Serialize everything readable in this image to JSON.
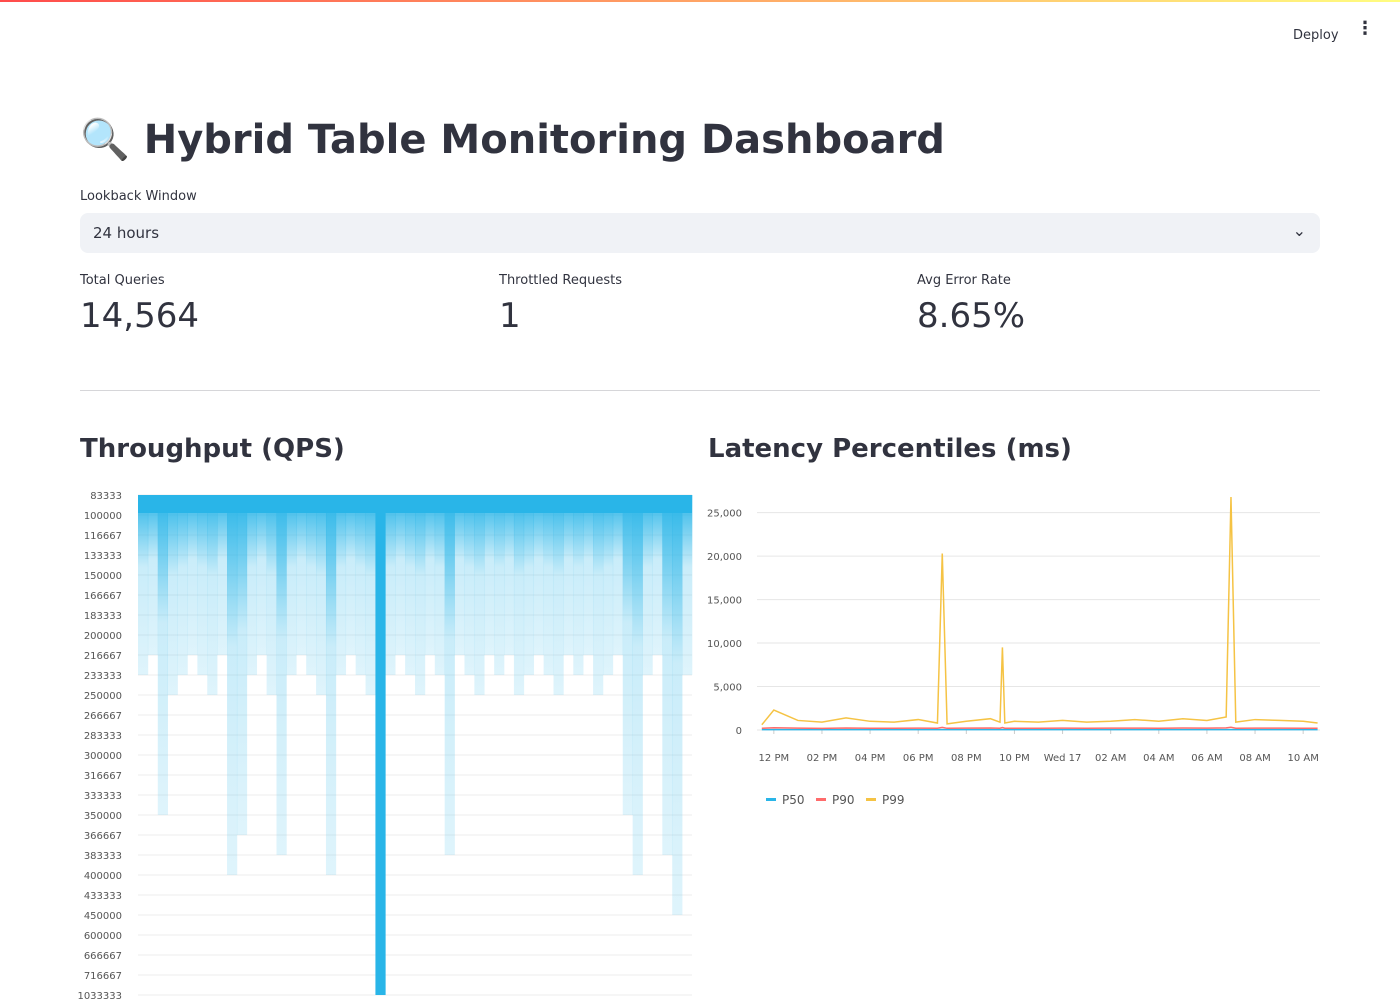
{
  "header": {
    "deploy": "Deploy"
  },
  "title": "🔍 Hybrid Table Monitoring Dashboard",
  "select": {
    "label": "Lookback Window",
    "value": "24 hours"
  },
  "metrics": [
    {
      "label": "Total Queries",
      "value": "14,564"
    },
    {
      "label": "Throttled Requests",
      "value": "1"
    },
    {
      "label": "Avg Error Rate",
      "value": "8.65%"
    }
  ],
  "charts": [
    {
      "type": "bar",
      "title": "Throughput (QPS)",
      "color": "#29b5e8",
      "yticks": [
        83333,
        100000,
        116667,
        133333,
        150000,
        166667,
        183333,
        200000,
        216667,
        233333,
        250000,
        266667,
        283333,
        300000,
        316667,
        333333,
        350000,
        366667,
        383333,
        400000,
        433333,
        450000,
        600000,
        666667,
        716667,
        1033333
      ],
      "values": [
        233333,
        216667,
        350000,
        250000,
        233333,
        216667,
        233333,
        250000,
        216667,
        400000,
        366667,
        233333,
        216667,
        250000,
        383333,
        233333,
        216667,
        233333,
        250000,
        400000,
        233333,
        216667,
        233333,
        250000,
        1033333,
        233333,
        216667,
        233333,
        250000,
        216667,
        233333,
        383333,
        216667,
        233333,
        250000,
        216667,
        233333,
        216667,
        250000,
        233333,
        216667,
        233333,
        250000,
        216667,
        233333,
        216667,
        250000,
        233333,
        216667,
        350000,
        400000,
        233333,
        216667,
        383333,
        450000,
        233333
      ]
    },
    {
      "type": "line",
      "title": "Latency Percentiles (ms)",
      "x": [
        11.5,
        12,
        13,
        14,
        15,
        16,
        17,
        18,
        18.8,
        19,
        19.2,
        20,
        21,
        21.4,
        21.5,
        21.6,
        22,
        23,
        24,
        25,
        26,
        27,
        28,
        29,
        30,
        30.8,
        31,
        31.2,
        32,
        33,
        34,
        34.6
      ],
      "xlim": [
        11.3,
        34.7
      ],
      "xticks": [
        {
          "value": 12,
          "label": "12 PM"
        },
        {
          "value": 14,
          "label": "02 PM"
        },
        {
          "value": 16,
          "label": "04 PM"
        },
        {
          "value": 18,
          "label": "06 PM"
        },
        {
          "value": 20,
          "label": "08 PM"
        },
        {
          "value": 22,
          "label": "10 PM"
        },
        {
          "value": 24,
          "label": "Wed 17"
        },
        {
          "value": 26,
          "label": "02 AM"
        },
        {
          "value": 28,
          "label": "04 AM"
        },
        {
          "value": 30,
          "label": "06 AM"
        },
        {
          "value": 32,
          "label": "08 AM"
        },
        {
          "value": 34,
          "label": "10 AM"
        }
      ],
      "ylim": [
        0,
        26800
      ],
      "yticks": [
        0,
        {
          "value": 5000,
          "label": "5,000"
        },
        {
          "value": 10000,
          "label": "10,000"
        },
        {
          "value": 15000,
          "label": "15,000"
        },
        {
          "value": 20000,
          "label": "20,000"
        },
        {
          "value": 25000,
          "label": "25,000"
        }
      ],
      "series": [
        {
          "name": "P50",
          "color": "#29b5e8",
          "values": [
            40,
            42,
            41,
            40,
            43,
            41,
            40,
            42,
            41,
            45,
            40,
            42,
            41,
            40,
            44,
            41,
            42,
            40,
            41,
            43,
            40,
            42,
            41,
            40,
            42,
            41,
            46,
            40,
            42,
            41,
            40,
            41
          ]
        },
        {
          "name": "P90",
          "color": "#ff6b6b",
          "values": [
            200,
            260,
            210,
            190,
            230,
            205,
            195,
            220,
            200,
            300,
            195,
            210,
            225,
            200,
            280,
            198,
            205,
            200,
            215,
            200,
            210,
            220,
            205,
            225,
            215,
            240,
            320,
            200,
            220,
            210,
            205,
            195
          ]
        },
        {
          "name": "P99",
          "color": "#f5c344",
          "values": [
            600,
            2300,
            1100,
            900,
            1400,
            1000,
            900,
            1200,
            800,
            20300,
            700,
            1000,
            1300,
            900,
            9500,
            800,
            1000,
            900,
            1100,
            900,
            1000,
            1200,
            1000,
            1300,
            1100,
            1500,
            26800,
            900,
            1200,
            1100,
            1000,
            800
          ]
        }
      ]
    }
  ]
}
